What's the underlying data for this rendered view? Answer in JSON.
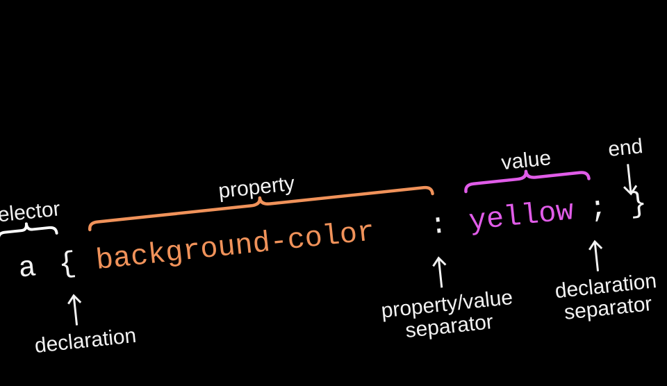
{
  "code": {
    "selector": "a",
    "open_brace": "{",
    "property": "background-color",
    "colon": ":",
    "value": "yellow",
    "semicolon": ";",
    "close_brace": "}"
  },
  "labels": {
    "selector": "selector",
    "property": "property",
    "value": "value",
    "end": "end",
    "declaration": "declaration",
    "property_value_separator_line1": "property/value",
    "property_value_separator_line2": "separator",
    "declaration_separator_line1": "declaration",
    "declaration_separator_line2": "separator"
  },
  "colors": {
    "background": "#000000",
    "text": "#f2f2f2",
    "property": "#f0925a",
    "value": "#e05ce8",
    "brace_selector": "#ffffff",
    "brace_property": "#f0925a",
    "brace_value": "#e05ce8"
  }
}
